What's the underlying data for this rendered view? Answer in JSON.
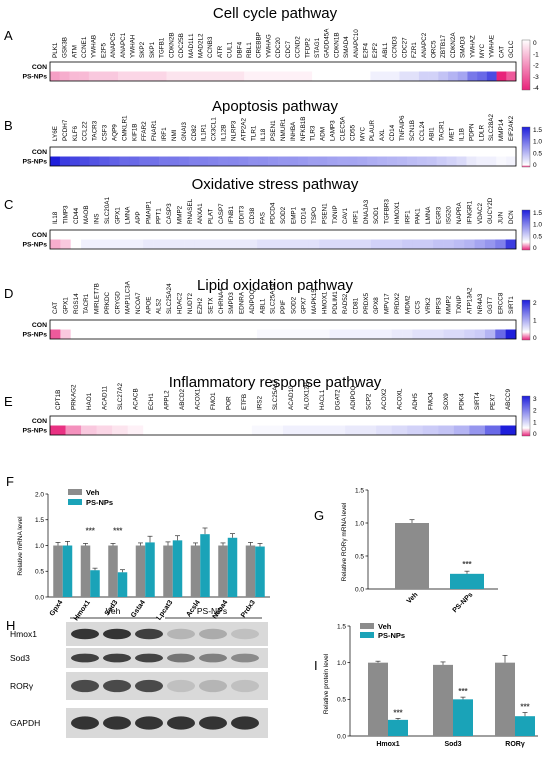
{
  "colors": {
    "veh": "#8c8c8c",
    "ps": "#1aa3b8",
    "heat_neg": "#e8237a",
    "heat_pos": "#2a2adb"
  },
  "heatmaps": [
    {
      "letter": "A",
      "title": "Cell cycle pathway",
      "rows": [
        "CON",
        "PS-NPs"
      ],
      "genes": [
        "PLK1",
        "GSK3B",
        "ATM",
        "CCNE1",
        "YWHAB",
        "E2F5",
        "ANAPC5",
        "ANAPC1",
        "YWHAH",
        "SKP2",
        "SKP1",
        "TGFB1",
        "CDKN2B",
        "CDC25B",
        "MAD1L1",
        "MAD2L2",
        "CCNB3",
        "ATR",
        "CUL1",
        "DBF4",
        "RBL1",
        "CREBBP",
        "YWHAG",
        "CDC20",
        "CDC7",
        "CCND2",
        "TFDP2",
        "STAG1",
        "GADD45A",
        "CDKN1B",
        "SMAD4",
        "ANAPC10",
        "E2F4",
        "E2F2",
        "ABL1",
        "CCND3",
        "CDC27",
        "FZR1",
        "ANAPC2",
        "ORC5",
        "ZBTB17",
        "CDKN2A",
        "SMAD3",
        "YWHAZ",
        "MYC",
        "YWHAE",
        "CAT",
        "GCLC"
      ],
      "ps_values": [
        -0.7,
        -0.6,
        -0.5,
        -0.5,
        -0.4,
        -0.4,
        -0.4,
        -0.3,
        -0.3,
        -0.3,
        -0.3,
        -0.3,
        -0.2,
        -0.2,
        -0.2,
        -0.2,
        -0.2,
        -0.2,
        -0.2,
        -0.2,
        -0.1,
        -0.1,
        -0.1,
        -0.1,
        -0.1,
        -0.1,
        -0.1,
        0,
        0,
        0,
        0,
        0,
        0,
        0.1,
        0.1,
        0.1,
        0.2,
        0.2,
        0.3,
        0.3,
        0.4,
        0.5,
        0.6,
        0.9,
        1,
        1.2,
        -3.8,
        -1.2
      ],
      "scale": {
        "min": -4,
        "max": 0,
        "ticks": [
          "0",
          "-1",
          "-2",
          "-3",
          "-4"
        ]
      }
    },
    {
      "letter": "B",
      "title": "Apoptosis pathway",
      "rows": [
        "CON",
        "PS-NPs"
      ],
      "genes": [
        "LY6E",
        "PCDH7",
        "KLF6",
        "CCL22",
        "TACR3",
        "CSF3",
        "AQP9",
        "CMKLR1",
        "KIF1B",
        "FFAR2",
        "FNAR1",
        "IRF1",
        "NMI",
        "GNAI3",
        "CD82",
        "IL1R1",
        "CX3CL1",
        "IL12B",
        "NLRP3",
        "ATP2A2",
        "TLR1",
        "IL18",
        "PSEN1",
        "NMUR1",
        "INHBA",
        "NFKB1B",
        "TLR3",
        "ADM",
        "LAMP3",
        "CLEC5A",
        "CD55",
        "MYC",
        "PLAUR",
        "AXL",
        "CD14",
        "TNFAIP6",
        "SCN1B",
        "CCL24",
        "ABI1",
        "TACR1",
        "MET",
        "IL1B",
        "PDPN",
        "LDLR",
        "SLC28A2",
        "MMP14",
        "EIF2AK2"
      ],
      "ps_values": [
        1.5,
        1.3,
        1.25,
        1.2,
        1.15,
        1.1,
        1.05,
        1,
        1,
        0.95,
        0.95,
        0.9,
        0.9,
        0.88,
        0.85,
        0.85,
        0.83,
        0.8,
        0.8,
        0.78,
        0.75,
        0.75,
        0.72,
        0.7,
        0.7,
        0.68,
        0.65,
        0.65,
        0.62,
        0.6,
        0.6,
        0.58,
        0.55,
        0.52,
        0.5,
        0.48,
        0.45,
        0.42,
        0.4,
        0.35,
        0.3,
        0.25,
        0.15,
        0.1,
        0.1,
        0.05,
        0.08
      ],
      "scale": {
        "min": 0,
        "max": 1.5,
        "ticks": [
          "1.5",
          "1.0",
          "0.5",
          "0"
        ]
      }
    },
    {
      "letter": "C",
      "title": "Oxidative stress pathway",
      "rows": [
        "CON",
        "PS-NPs"
      ],
      "genes": [
        "IL18",
        "TIMP3",
        "CD44",
        "MAOB",
        "INS",
        "SLC20A1",
        "GPX1",
        "LMNA",
        "APP",
        "PMAIP1",
        "PPT1",
        "CASP3",
        "MMP2",
        "RNASEL",
        "ANXA1",
        "PLAT",
        "CASP7",
        "IFNB1",
        "DDIT3",
        "CD38",
        "FAS",
        "PDCD4",
        "SOD2",
        "EMP1",
        "CD14",
        "TSPO",
        "PSEN1",
        "TXNIP",
        "CAV1",
        "IRF1",
        "DNAJA3",
        "SOD1",
        "TGFBR3",
        "HMOX1",
        "IRF1",
        "PAK1",
        "LMNA",
        "EGR3",
        "ISG20",
        "NAPRA",
        "IFNGR1",
        "VDAC2",
        "GUCY2D",
        "JUN",
        "DCN"
      ],
      "ps_values": [
        -0.6,
        -0.4,
        0,
        0.1,
        0.1,
        0.1,
        0.1,
        0.1,
        0.1,
        0.15,
        0.15,
        0.15,
        0.15,
        0.15,
        0.15,
        0.15,
        0.15,
        0.15,
        0.15,
        0.15,
        0.2,
        0.2,
        0.2,
        0.2,
        0.2,
        0.2,
        0.25,
        0.25,
        0.25,
        0.25,
        0.25,
        0.3,
        0.3,
        0.3,
        0.35,
        0.35,
        0.35,
        0.4,
        0.4,
        0.45,
        0.5,
        0.6,
        0.7,
        0.85,
        1.3
      ],
      "scale": {
        "min": -0.5,
        "max": 1.5,
        "ticks": [
          "1.5",
          "1.0",
          "0.5",
          "0"
        ]
      }
    },
    {
      "letter": "D",
      "title": "Lipid oxidation pathway",
      "rows": [
        "CON",
        "PS-NPs"
      ],
      "genes": [
        "CAT",
        "GPX1",
        "RGS14",
        "TACR1",
        "MIRLET7B",
        "PRKDC",
        "CRYGD",
        "MAP1LC3A",
        "NCOA7",
        "APOE",
        "ALS2",
        "SLC25A24",
        "HDAC2",
        "NUDT2",
        "EZH2",
        "SETX",
        "CHRNA4",
        "SMPD3",
        "EDNRA",
        "ADIPOQ",
        "ABL1",
        "SLC25A14",
        "PPIF",
        "SOD2",
        "GPX7",
        "MAPK15",
        "HMOX1",
        "PDLIM1",
        "RAD52",
        "CD81",
        "PRDX5",
        "GPX8",
        "MPV17",
        "PRDX2",
        "MDM2",
        "CCS",
        "VRK2",
        "RPS3",
        "MMP2",
        "TXNIP",
        "ATP13A2",
        "NR4A3",
        "GGT7",
        "ERCC8",
        "SIRT1"
      ],
      "ps_values": [
        -1.2,
        -0.4,
        0,
        0,
        0,
        0,
        0,
        0,
        0,
        0,
        0,
        0,
        0,
        0,
        0,
        0,
        0,
        0,
        0,
        0,
        0.05,
        0.05,
        0.05,
        0.05,
        0.05,
        0.05,
        0.05,
        0.1,
        0.1,
        0.1,
        0.1,
        0.1,
        0.1,
        0.15,
        0.15,
        0.2,
        0.2,
        0.2,
        0.25,
        0.25,
        0.3,
        0.35,
        0.5,
        1.0,
        2.0
      ],
      "scale": {
        "min": -1.5,
        "max": 2.5,
        "ticks": [
          "2",
          "1",
          "0"
        ]
      }
    },
    {
      "letter": "E",
      "title": "Inflammatory response pathway",
      "rows": [
        "CON",
        "PS-NPs"
      ],
      "genes": [
        "CPT1B",
        "PRKAG2",
        "HAO1",
        "ACAD11",
        "SLC27A2",
        "ACACB",
        "ECH1",
        "APPL2",
        "ABCD2",
        "ACOX1",
        "FMO1",
        "POR",
        "ETFB",
        "IRS2",
        "SLC25A17",
        "ACAD10",
        "ALOX12B",
        "HACL1",
        "DGAT2",
        "ADIPOQ",
        "SCP2",
        "ACOX2",
        "ACOXL",
        "ADH5",
        "FMO4",
        "SOX9",
        "PDK4",
        "SIRT4",
        "PEX7",
        "ABCC9"
      ],
      "ps_values": [
        -1.5,
        -0.8,
        -0.4,
        -0.3,
        -0.2,
        -0.1,
        0,
        0,
        0,
        0,
        0,
        0,
        0,
        0.05,
        0.05,
        0.1,
        0.1,
        0.1,
        0.1,
        0.15,
        0.15,
        0.2,
        0.25,
        0.3,
        0.35,
        0.4,
        0.5,
        0.7,
        1.0,
        2.8
      ],
      "scale": {
        "min": -1.5,
        "max": 3,
        "ticks": [
          "3",
          "2",
          "1",
          "0"
        ]
      }
    }
  ],
  "panelF": {
    "letter": "F",
    "ylabel": "Relative mRNA level",
    "legend": [
      "Veh",
      "PS-NPs"
    ],
    "yticks": [
      "0.0",
      "0.5",
      "1.0",
      "1.5",
      "2.0"
    ],
    "chart_data": {
      "type": "bar",
      "categories": [
        "Gpx4",
        "Hmox1",
        "Sod3",
        "Gsta4",
        "Lpcat3",
        "Acsl4",
        "Ncoa4",
        "Prdx3"
      ],
      "series": [
        {
          "name": "Veh",
          "values": [
            1.0,
            1.0,
            1.0,
            1.0,
            1.0,
            1.0,
            1.0,
            1.0
          ],
          "errors": [
            0.06,
            0.04,
            0.04,
            0.05,
            0.07,
            0.05,
            0.05,
            0.06
          ]
        },
        {
          "name": "PS-NPs",
          "values": [
            1.0,
            0.52,
            0.48,
            1.06,
            1.1,
            1.22,
            1.15,
            0.98
          ],
          "errors": [
            0.08,
            0.04,
            0.05,
            0.12,
            0.09,
            0.12,
            0.08,
            0.06
          ]
        }
      ],
      "ylim": [
        0,
        2.0
      ],
      "significance": [
        "",
        "***",
        "***",
        "",
        "",
        "",
        "",
        ""
      ]
    }
  },
  "panelG": {
    "letter": "G",
    "ylabel": "Relative RORγ mRNA level",
    "yticks": [
      "0.0",
      "0.5",
      "1.0",
      "1.5"
    ],
    "chart_data": {
      "type": "bar",
      "categories": [
        "Veh",
        "PS-NPs"
      ],
      "values": [
        1.0,
        0.23
      ],
      "errors": [
        0.05,
        0.04
      ],
      "ylim": [
        0,
        1.5
      ],
      "significance": [
        "",
        "***"
      ]
    }
  },
  "panelH": {
    "letter": "H",
    "groups": [
      "Veh",
      "PS-NPs"
    ],
    "rows": [
      "Hmox1",
      "Sod3",
      "RORγ",
      "GAPDH"
    ]
  },
  "panelI": {
    "letter": "I",
    "ylabel": "Relative protein level",
    "legend": [
      "Veh",
      "PS-NPs"
    ],
    "yticks": [
      "0.0",
      "0.5",
      "1.0",
      "1.5"
    ],
    "chart_data": {
      "type": "bar",
      "categories": [
        "Hmox1",
        "Sod3",
        "RORγ"
      ],
      "series": [
        {
          "name": "Veh",
          "values": [
            1.0,
            0.97,
            1.0
          ],
          "errors": [
            0.02,
            0.04,
            0.1
          ]
        },
        {
          "name": "PS-NPs",
          "values": [
            0.22,
            0.5,
            0.27
          ],
          "errors": [
            0.02,
            0.03,
            0.05
          ]
        }
      ],
      "ylim": [
        0,
        1.5
      ],
      "significance": [
        "***",
        "***",
        "***"
      ]
    }
  }
}
